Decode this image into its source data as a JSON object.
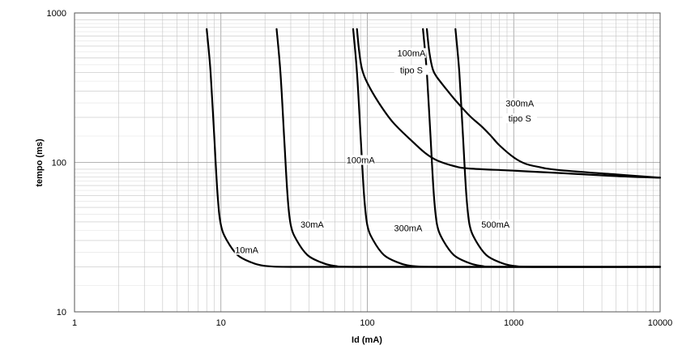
{
  "chart_data": {
    "type": "line",
    "title": "",
    "xlabel": "Id (mA)",
    "ylabel": "tempo (ms)",
    "xscale": "log",
    "yscale": "log",
    "xlim": [
      1,
      10000
    ],
    "ylim": [
      10,
      1000
    ],
    "grid": true,
    "x_ticks": [
      {
        "value": 1,
        "label": "1"
      },
      {
        "value": 10,
        "label": "10"
      },
      {
        "value": 100,
        "label": "100"
      },
      {
        "value": 1000,
        "label": "1000"
      },
      {
        "value": 10000,
        "label": "10000"
      }
    ],
    "y_ticks": [
      {
        "value": 10,
        "label": "10"
      },
      {
        "value": 100,
        "label": "100"
      },
      {
        "value": 1000,
        "label": "1000"
      }
    ],
    "series": [
      {
        "points": [
          [
            8,
            780
          ],
          [
            8.5,
            400
          ],
          [
            9,
            150
          ],
          [
            9.5,
            60
          ],
          [
            10,
            38
          ],
          [
            11,
            30
          ],
          [
            13,
            24
          ],
          [
            16,
            21.5
          ],
          [
            20,
            20.3
          ],
          [
            30,
            20
          ],
          [
            100,
            20
          ],
          [
            1000,
            20
          ],
          [
            10000,
            20
          ]
        ]
      },
      {
        "points": [
          [
            24,
            780
          ],
          [
            25.5,
            400
          ],
          [
            27,
            150
          ],
          [
            28.5,
            60
          ],
          [
            30,
            38
          ],
          [
            33,
            30
          ],
          [
            39,
            24
          ],
          [
            48,
            21.5
          ],
          [
            60,
            20.3
          ],
          [
            90,
            20
          ],
          [
            1000,
            20
          ],
          [
            10000,
            20
          ]
        ]
      },
      {
        "points": [
          [
            80,
            780
          ],
          [
            85,
            400
          ],
          [
            90,
            150
          ],
          [
            95,
            60
          ],
          [
            100,
            38
          ],
          [
            110,
            30
          ],
          [
            130,
            24
          ],
          [
            160,
            21.5
          ],
          [
            200,
            20.3
          ],
          [
            300,
            20
          ],
          [
            1000,
            20
          ],
          [
            10000,
            20
          ]
        ]
      },
      {
        "points": [
          [
            240,
            780
          ],
          [
            255,
            400
          ],
          [
            270,
            150
          ],
          [
            285,
            60
          ],
          [
            300,
            38
          ],
          [
            330,
            30
          ],
          [
            390,
            24
          ],
          [
            480,
            21.5
          ],
          [
            600,
            20.3
          ],
          [
            900,
            20
          ],
          [
            10000,
            20
          ]
        ]
      },
      {
        "points": [
          [
            400,
            780
          ],
          [
            425,
            400
          ],
          [
            450,
            150
          ],
          [
            475,
            60
          ],
          [
            500,
            38
          ],
          [
            550,
            30
          ],
          [
            650,
            24
          ],
          [
            800,
            21.5
          ],
          [
            1000,
            20.3
          ],
          [
            1500,
            20
          ],
          [
            10000,
            20
          ]
        ]
      },
      {
        "points": [
          [
            85,
            780
          ],
          [
            88,
            550
          ],
          [
            92,
            420
          ],
          [
            100,
            340
          ],
          [
            120,
            250
          ],
          [
            150,
            185
          ],
          [
            200,
            140
          ],
          [
            250,
            115
          ],
          [
            300,
            103
          ],
          [
            400,
            94
          ],
          [
            500,
            91
          ],
          [
            1000,
            88
          ],
          [
            2000,
            85
          ],
          [
            5000,
            81
          ],
          [
            10000,
            79
          ]
        ]
      },
      {
        "points": [
          [
            255,
            780
          ],
          [
            265,
            550
          ],
          [
            280,
            420
          ],
          [
            300,
            370
          ],
          [
            350,
            305
          ],
          [
            400,
            260
          ],
          [
            500,
            205
          ],
          [
            600,
            175
          ],
          [
            700,
            150
          ],
          [
            800,
            130
          ],
          [
            1000,
            108
          ],
          [
            1200,
            98
          ],
          [
            1500,
            93
          ],
          [
            2000,
            89
          ],
          [
            5000,
            83
          ],
          [
            10000,
            79
          ]
        ]
      }
    ],
    "annotations": [
      {
        "text": "10mA",
        "x": 15,
        "y": 25
      },
      {
        "text": "30mA",
        "x": 42,
        "y": 37
      },
      {
        "text": "100mA",
        "x": 90,
        "y": 100
      },
      {
        "text": "300mA",
        "x": 190,
        "y": 35
      },
      {
        "text": "500mA",
        "x": 750,
        "y": 37
      },
      {
        "text": "100mA",
        "x": 200,
        "y": 520
      },
      {
        "text": "tipo S",
        "x": 200,
        "y": 400
      },
      {
        "text": "300mA",
        "x": 1100,
        "y": 240
      },
      {
        "text": "tipo S",
        "x": 1100,
        "y": 190
      }
    ]
  }
}
